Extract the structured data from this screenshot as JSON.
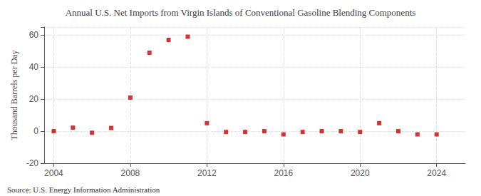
{
  "chart_data": {
    "type": "scatter",
    "title": "Annual U.S. Net Imports from Virgin Islands of Conventional Gasoline Blending Components",
    "ylabel": "Thousand Barrels per Day",
    "annotations": [
      "Source: U.S. Energy Information Administration"
    ],
    "x": [
      2004,
      2005,
      2006,
      2007,
      2008,
      2009,
      2010,
      2011,
      2012,
      2013,
      2014,
      2015,
      2016,
      2017,
      2018,
      2019,
      2020,
      2021,
      2022,
      2023,
      2024
    ],
    "values": [
      0.0,
      2.2,
      -1.0,
      2.0,
      21.0,
      49.0,
      57.0,
      59.0,
      5.0,
      -0.5,
      -0.5,
      0.0,
      -2.0,
      -0.5,
      0.0,
      0.0,
      -0.5,
      5.0,
      0.0,
      -2.0,
      -2.0
    ],
    "color": "#cc0000",
    "marker": "square",
    "xlim": [
      2003.5,
      2025.5
    ],
    "xticks": [
      2004,
      2008,
      2012,
      2016,
      2020,
      2024
    ],
    "ylim": [
      -20,
      65
    ],
    "yticks": [
      -20,
      0,
      20,
      40,
      60
    ],
    "grid": true
  }
}
